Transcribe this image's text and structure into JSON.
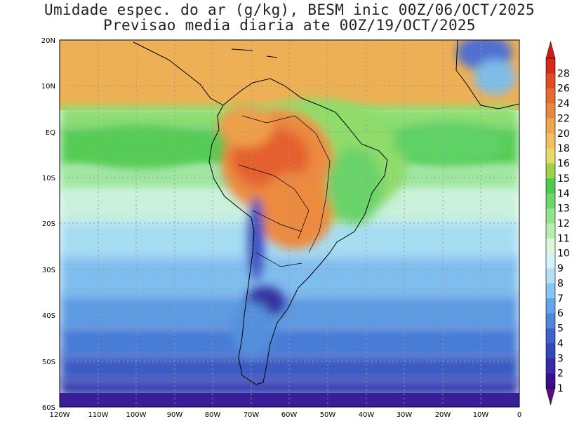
{
  "title_line1": "Umidade espec. do ar (g/kg), BESM inic 00Z/06/OCT/2025",
  "title_line2": "Previsao media diaria ate 00Z/19/OCT/2025",
  "map": {
    "lon_ticks": [
      "120W",
      "110W",
      "100W",
      "90W",
      "80W",
      "70W",
      "60W",
      "50W",
      "40W",
      "30W",
      "20W",
      "10W",
      "0"
    ],
    "lat_ticks": [
      "20N",
      "10N",
      "EQ",
      "10S",
      "20S",
      "30S",
      "40S",
      "50S",
      "60S"
    ]
  },
  "colorbar": {
    "levels": [
      "1",
      "2",
      "3",
      "4",
      "5",
      "6",
      "7",
      "8",
      "9",
      "10",
      "11",
      "12",
      "13",
      "14",
      "15",
      "16",
      "18",
      "20",
      "22",
      "24",
      "26",
      "28"
    ],
    "colors": [
      "#3a0f8a",
      "#3a2aa8",
      "#3448b8",
      "#3f64c9",
      "#4f86dc",
      "#63a5ea",
      "#86c6f2",
      "#b4e0f7",
      "#d5f3f5",
      "#dff7d8",
      "#b8edb2",
      "#92e290",
      "#6cd66a",
      "#4bcb50",
      "#9fd24a",
      "#e7d96a",
      "#efc060",
      "#eca64e",
      "#e98840",
      "#e76a32",
      "#e14c26",
      "#d62b1c"
    ],
    "arrow_bottom_color": "#5b0f7e",
    "arrow_top_color": "#d21b16"
  }
}
